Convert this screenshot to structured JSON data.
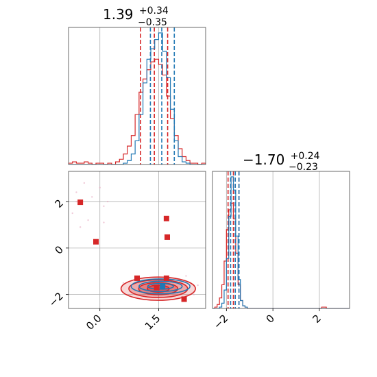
{
  "chart_data": [
    {
      "type": "histogram",
      "panel": "marginal-param-1",
      "title": {
        "value": "1.39",
        "plus": "+0.34",
        "minus": "−0.35"
      },
      "xlim": [
        -0.8,
        2.7
      ],
      "grid": true,
      "x_ticks": [
        0.0,
        1.5
      ],
      "series": [
        {
          "color": "#d62728",
          "bins": [
            -0.8,
            -0.7,
            -0.6,
            -0.5,
            -0.4,
            -0.3,
            -0.2,
            -0.1,
            0.0,
            0.1,
            0.2,
            0.3,
            0.4,
            0.5,
            0.6,
            0.7,
            0.8,
            0.9,
            1.0,
            1.1,
            1.2,
            1.3,
            1.4,
            1.5,
            1.6,
            1.7,
            1.8,
            1.9,
            2.0,
            2.1,
            2.2,
            2.3,
            2.4,
            2.5,
            2.6,
            2.7
          ],
          "counts": [
            1,
            2,
            1,
            1,
            2,
            1,
            0,
            1,
            1,
            0,
            1,
            0,
            2,
            4,
            8,
            14,
            22,
            38,
            55,
            65,
            72,
            78,
            80,
            76,
            68,
            52,
            35,
            22,
            12,
            6,
            3,
            1,
            1,
            0,
            1
          ],
          "quantiles": [
            1.04,
            1.39,
            1.73
          ]
        },
        {
          "color": "#1f77b4",
          "bins": [
            -0.8,
            -0.7,
            -0.6,
            -0.5,
            -0.4,
            -0.3,
            -0.2,
            -0.1,
            0.0,
            0.1,
            0.2,
            0.3,
            0.4,
            0.5,
            0.6,
            0.7,
            0.8,
            0.9,
            1.0,
            1.1,
            1.2,
            1.3,
            1.4,
            1.5,
            1.6,
            1.7,
            1.8,
            1.9,
            2.0,
            2.1,
            2.2,
            2.3,
            2.4,
            2.5,
            2.6,
            2.7
          ],
          "counts": [
            0,
            0,
            0,
            0,
            0,
            0,
            0,
            0,
            0,
            0,
            0,
            0,
            0,
            0,
            1,
            3,
            8,
            18,
            38,
            62,
            80,
            88,
            95,
            100,
            86,
            66,
            42,
            18,
            6,
            2,
            1,
            0,
            0,
            0,
            0
          ],
          "quantiles": [
            1.29,
            1.58,
            1.9
          ]
        }
      ]
    },
    {
      "type": "contour_scatter",
      "panel": "joint-param-1-param-2",
      "xlim": [
        -0.8,
        2.7
      ],
      "ylim": [
        -2.6,
        3.3
      ],
      "grid": true,
      "x_ticks": [
        0.0,
        1.5
      ],
      "y_ticks": [
        -2,
        0,
        2
      ],
      "x_tick_labels": [
        "0.0",
        "1.5"
      ],
      "y_tick_labels": [
        "−2",
        "0",
        "2"
      ],
      "series": [
        {
          "color": "#d62728",
          "points": [
            [
              -0.5,
              1.97
            ],
            [
              -0.1,
              0.27
            ],
            [
              1.7,
              1.27
            ],
            [
              1.72,
              0.47
            ],
            [
              0.95,
              -1.3
            ],
            [
              1.45,
              -1.7
            ],
            [
              1.7,
              -1.3
            ],
            [
              2.15,
              -2.2
            ]
          ],
          "contour": {
            "center": [
              1.49,
              -1.75
            ],
            "radii": [
              [
                0.95,
                0.5
              ],
              [
                0.75,
                0.38
              ],
              [
                0.5,
                0.26
              ],
              [
                0.28,
                0.15
              ]
            ]
          }
        },
        {
          "color": "#1f77b4",
          "points": [
            [
              1.6,
              -1.65
            ]
          ],
          "contour": {
            "center": [
              1.55,
              -1.65
            ],
            "radii": [
              [
                0.75,
                0.32
              ],
              [
                0.55,
                0.22
              ],
              [
                0.33,
                0.12
              ]
            ]
          }
        }
      ]
    },
    {
      "type": "histogram",
      "panel": "marginal-param-2",
      "title": {
        "value": "−1.70",
        "plus": "+0.24",
        "minus": "−0.23"
      },
      "xlim": [
        -2.6,
        3.3
      ],
      "grid": true,
      "x_ticks": [
        -2,
        0,
        2
      ],
      "x_tick_labels": [
        "−2",
        "0",
        "2"
      ],
      "series": [
        {
          "color": "#d62728",
          "bins": [
            -2.6,
            -2.5,
            -2.4,
            -2.3,
            -2.2,
            -2.1,
            -2.0,
            -1.9,
            -1.8,
            -1.7,
            -1.6,
            -1.5,
            -1.4,
            -1.3,
            -1.2,
            -1.1,
            -1.0,
            -0.9,
            -0.8,
            -0.7,
            -0.6,
            -0.5,
            -0.4,
            -0.3,
            -0.2,
            -0.1,
            0.0,
            0.1,
            0.2,
            0.3,
            0.4,
            0.5,
            0.6,
            0.7,
            0.8,
            0.9,
            1.0,
            1.1,
            1.2,
            1.3,
            1.4,
            1.5,
            1.6,
            1.7,
            1.8,
            1.9,
            2.0,
            2.1,
            2.2,
            2.3,
            2.4,
            2.5,
            2.6,
            2.7,
            2.8,
            2.9,
            3.0,
            3.1,
            3.2,
            3.3
          ],
          "counts": [
            0,
            1,
            3,
            8,
            18,
            36,
            60,
            75,
            80,
            68,
            42,
            18,
            6,
            2,
            1,
            0,
            0,
            0,
            0,
            0,
            0,
            0,
            0,
            0,
            0,
            0,
            0,
            0,
            0,
            0,
            0,
            0,
            0,
            0,
            0,
            0,
            0,
            0,
            0,
            0,
            0,
            0,
            0,
            0,
            0,
            0,
            0,
            1,
            1,
            0,
            0,
            0,
            0,
            0,
            0,
            0,
            0,
            0,
            0
          ],
          "quantiles": [
            -1.93,
            -1.7,
            -1.46
          ]
        },
        {
          "color": "#1f77b4",
          "bins": [
            -2.6,
            -2.5,
            -2.4,
            -2.3,
            -2.2,
            -2.1,
            -2.0,
            -1.9,
            -1.8,
            -1.7,
            -1.6,
            -1.5,
            -1.4,
            -1.3,
            -1.2,
            -1.1,
            -1.0,
            -0.9,
            -0.8,
            -0.7,
            -0.6,
            -0.5,
            -0.4,
            -0.3,
            -0.2,
            -0.1,
            0.0,
            0.1,
            0.2,
            0.3,
            0.4,
            0.5,
            0.6,
            0.7,
            0.8,
            0.9,
            1.0,
            1.1,
            1.2,
            1.3,
            1.4,
            1.5,
            1.6,
            1.7,
            1.8,
            1.9,
            2.0,
            2.1,
            2.2,
            2.3,
            2.4,
            2.5,
            2.6,
            2.7,
            2.8,
            2.9,
            3.0,
            3.1,
            3.2,
            3.3
          ],
          "counts": [
            0,
            0,
            0,
            1,
            4,
            14,
            38,
            70,
            100,
            90,
            55,
            22,
            6,
            2,
            1,
            0,
            0,
            0,
            0,
            0,
            0,
            0,
            0,
            0,
            0,
            0,
            0,
            0,
            0,
            0,
            0,
            0,
            0,
            0,
            0,
            0,
            0,
            0,
            0,
            0,
            0,
            0,
            0,
            0,
            0,
            0,
            0,
            0,
            0,
            0,
            0,
            0,
            0,
            0,
            0,
            0,
            0,
            0,
            0
          ],
          "quantiles": [
            -1.82,
            -1.62,
            -1.46
          ]
        }
      ]
    }
  ]
}
